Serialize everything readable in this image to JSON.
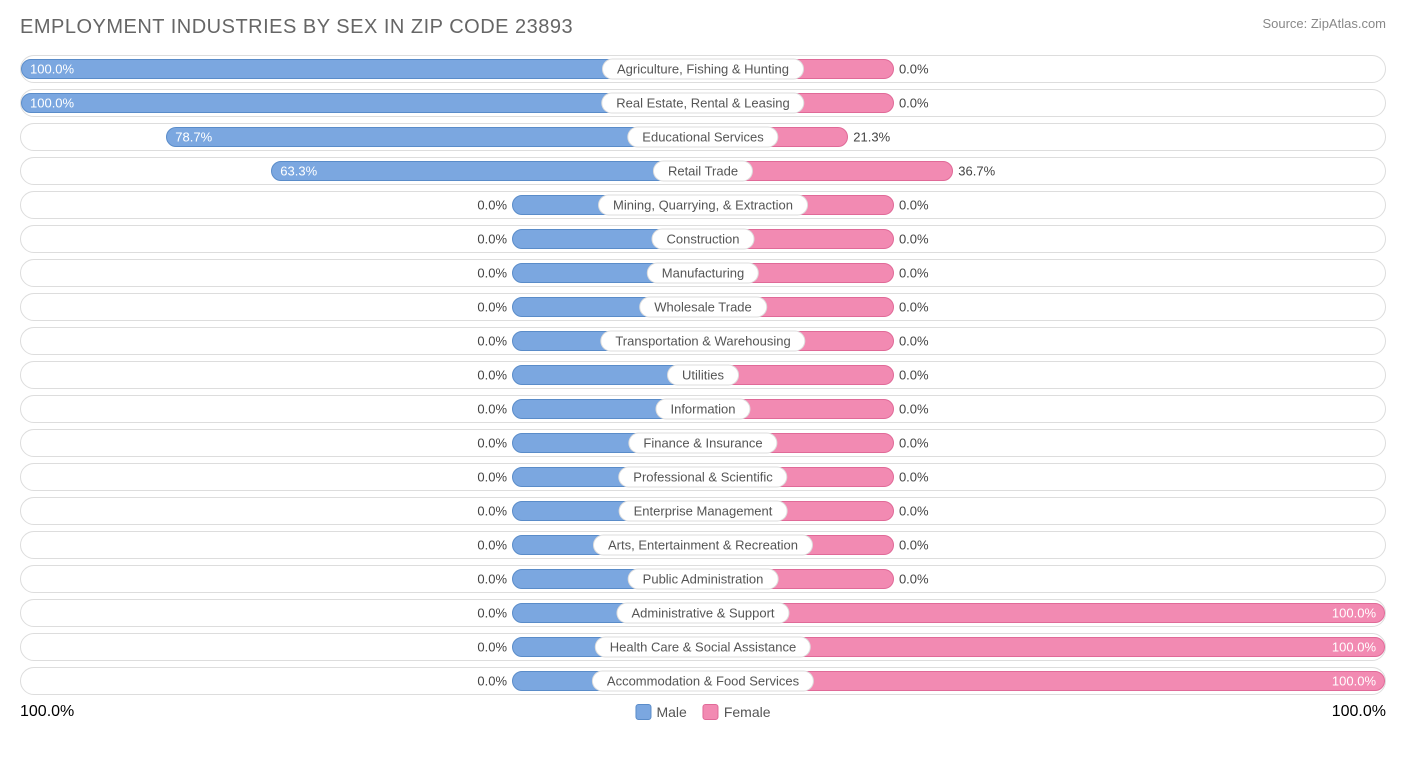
{
  "header": {
    "title": "EMPLOYMENT INDUSTRIES BY SEX IN ZIP CODE 23893",
    "source": "Source: ZipAtlas.com"
  },
  "chart": {
    "type": "diverging-bar",
    "male_color": "#7ba7e0",
    "male_border": "#5a8cc9",
    "female_color": "#f28ab2",
    "female_border": "#e06a98",
    "row_border_color": "#dddddd",
    "background_color": "#ffffff",
    "label_fontsize": 13,
    "title_fontsize": 20,
    "default_bar_pct": 28,
    "rows": [
      {
        "label": "Agriculture, Fishing & Hunting",
        "male_pct": 100.0,
        "male_text": "100.0%",
        "female_pct": 0.0,
        "female_text": "0.0%"
      },
      {
        "label": "Real Estate, Rental & Leasing",
        "male_pct": 100.0,
        "male_text": "100.0%",
        "female_pct": 0.0,
        "female_text": "0.0%"
      },
      {
        "label": "Educational Services",
        "male_pct": 78.7,
        "male_text": "78.7%",
        "female_pct": 21.3,
        "female_text": "21.3%"
      },
      {
        "label": "Retail Trade",
        "male_pct": 63.3,
        "male_text": "63.3%",
        "female_pct": 36.7,
        "female_text": "36.7%"
      },
      {
        "label": "Mining, Quarrying, & Extraction",
        "male_pct": 0.0,
        "male_text": "0.0%",
        "female_pct": 0.0,
        "female_text": "0.0%"
      },
      {
        "label": "Construction",
        "male_pct": 0.0,
        "male_text": "0.0%",
        "female_pct": 0.0,
        "female_text": "0.0%"
      },
      {
        "label": "Manufacturing",
        "male_pct": 0.0,
        "male_text": "0.0%",
        "female_pct": 0.0,
        "female_text": "0.0%"
      },
      {
        "label": "Wholesale Trade",
        "male_pct": 0.0,
        "male_text": "0.0%",
        "female_pct": 0.0,
        "female_text": "0.0%"
      },
      {
        "label": "Transportation & Warehousing",
        "male_pct": 0.0,
        "male_text": "0.0%",
        "female_pct": 0.0,
        "female_text": "0.0%"
      },
      {
        "label": "Utilities",
        "male_pct": 0.0,
        "male_text": "0.0%",
        "female_pct": 0.0,
        "female_text": "0.0%"
      },
      {
        "label": "Information",
        "male_pct": 0.0,
        "male_text": "0.0%",
        "female_pct": 0.0,
        "female_text": "0.0%"
      },
      {
        "label": "Finance & Insurance",
        "male_pct": 0.0,
        "male_text": "0.0%",
        "female_pct": 0.0,
        "female_text": "0.0%"
      },
      {
        "label": "Professional & Scientific",
        "male_pct": 0.0,
        "male_text": "0.0%",
        "female_pct": 0.0,
        "female_text": "0.0%"
      },
      {
        "label": "Enterprise Management",
        "male_pct": 0.0,
        "male_text": "0.0%",
        "female_pct": 0.0,
        "female_text": "0.0%"
      },
      {
        "label": "Arts, Entertainment & Recreation",
        "male_pct": 0.0,
        "male_text": "0.0%",
        "female_pct": 0.0,
        "female_text": "0.0%"
      },
      {
        "label": "Public Administration",
        "male_pct": 0.0,
        "male_text": "0.0%",
        "female_pct": 0.0,
        "female_text": "0.0%"
      },
      {
        "label": "Administrative & Support",
        "male_pct": 0.0,
        "male_text": "0.0%",
        "female_pct": 100.0,
        "female_text": "100.0%"
      },
      {
        "label": "Health Care & Social Assistance",
        "male_pct": 0.0,
        "male_text": "0.0%",
        "female_pct": 100.0,
        "female_text": "100.0%"
      },
      {
        "label": "Accommodation & Food Services",
        "male_pct": 0.0,
        "male_text": "0.0%",
        "female_pct": 100.0,
        "female_text": "100.0%"
      }
    ]
  },
  "footer": {
    "axis_left": "100.0%",
    "axis_right": "100.0%",
    "legend_male": "Male",
    "legend_female": "Female"
  }
}
